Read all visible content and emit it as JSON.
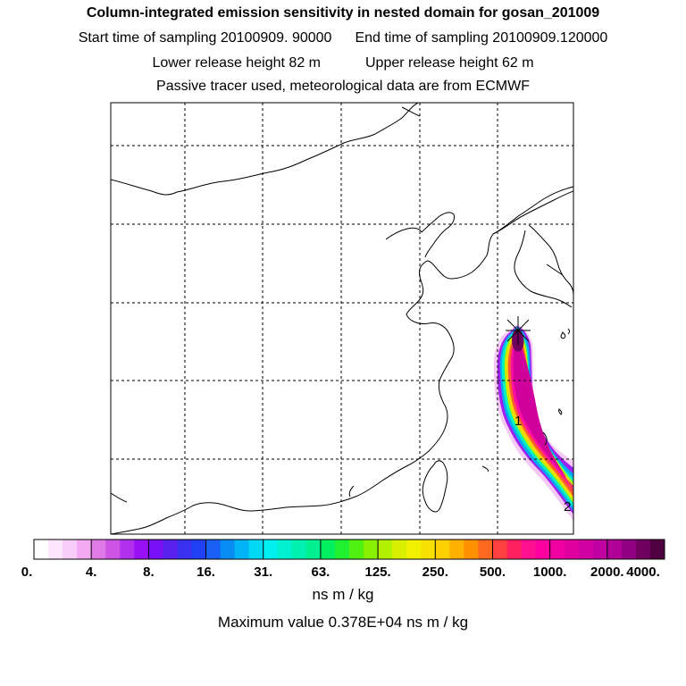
{
  "header": {
    "title": "Column-integrated emission sensitivity in nested domain for gosan_201009",
    "start_time": "Start time of sampling 20100909. 90000",
    "end_time": "End time of sampling 20100909.120000",
    "lower_release": "Lower release height   82 m",
    "upper_release": "Upper release height   62 m",
    "tracer_note": "Passive tracer used, meteorological data are from ECMWF"
  },
  "map": {
    "receptor_marker": "star-receptor",
    "labels": [
      "1",
      "2"
    ]
  },
  "colorbar": {
    "ticks": [
      "0.",
      "4.",
      "8.",
      "16.",
      "31.",
      "63.",
      "125.",
      "250.",
      "500.",
      "1000.",
      "2000.",
      "4000."
    ],
    "colors": [
      "#ffffff",
      "#fde6fd",
      "#f8ccf8",
      "#f3aaf3",
      "#e07ae8",
      "#cc55e6",
      "#b030ee",
      "#9a10f5",
      "#7a10f5",
      "#5a20ee",
      "#3a30f0",
      "#2040f5",
      "#1a60f5",
      "#0a8cf5",
      "#00b4f5",
      "#00d8f5",
      "#00f0f0",
      "#00f0d0",
      "#00f0b0",
      "#00f090",
      "#00f060",
      "#20f030",
      "#50f010",
      "#88f000",
      "#b0f000",
      "#d8f000",
      "#f0f000",
      "#f8e000",
      "#ffd000",
      "#ffb000",
      "#ff9000",
      "#ff6a20",
      "#ff4040",
      "#ff2060",
      "#ff1090",
      "#ff00a0",
      "#f000a0",
      "#e000a0",
      "#d000a0",
      "#c000a0",
      "#b00098",
      "#900080",
      "#700060",
      "#500040"
    ],
    "units": "ns m / kg",
    "maximum": "Maximum value  0.378E+04 ns m / kg"
  }
}
